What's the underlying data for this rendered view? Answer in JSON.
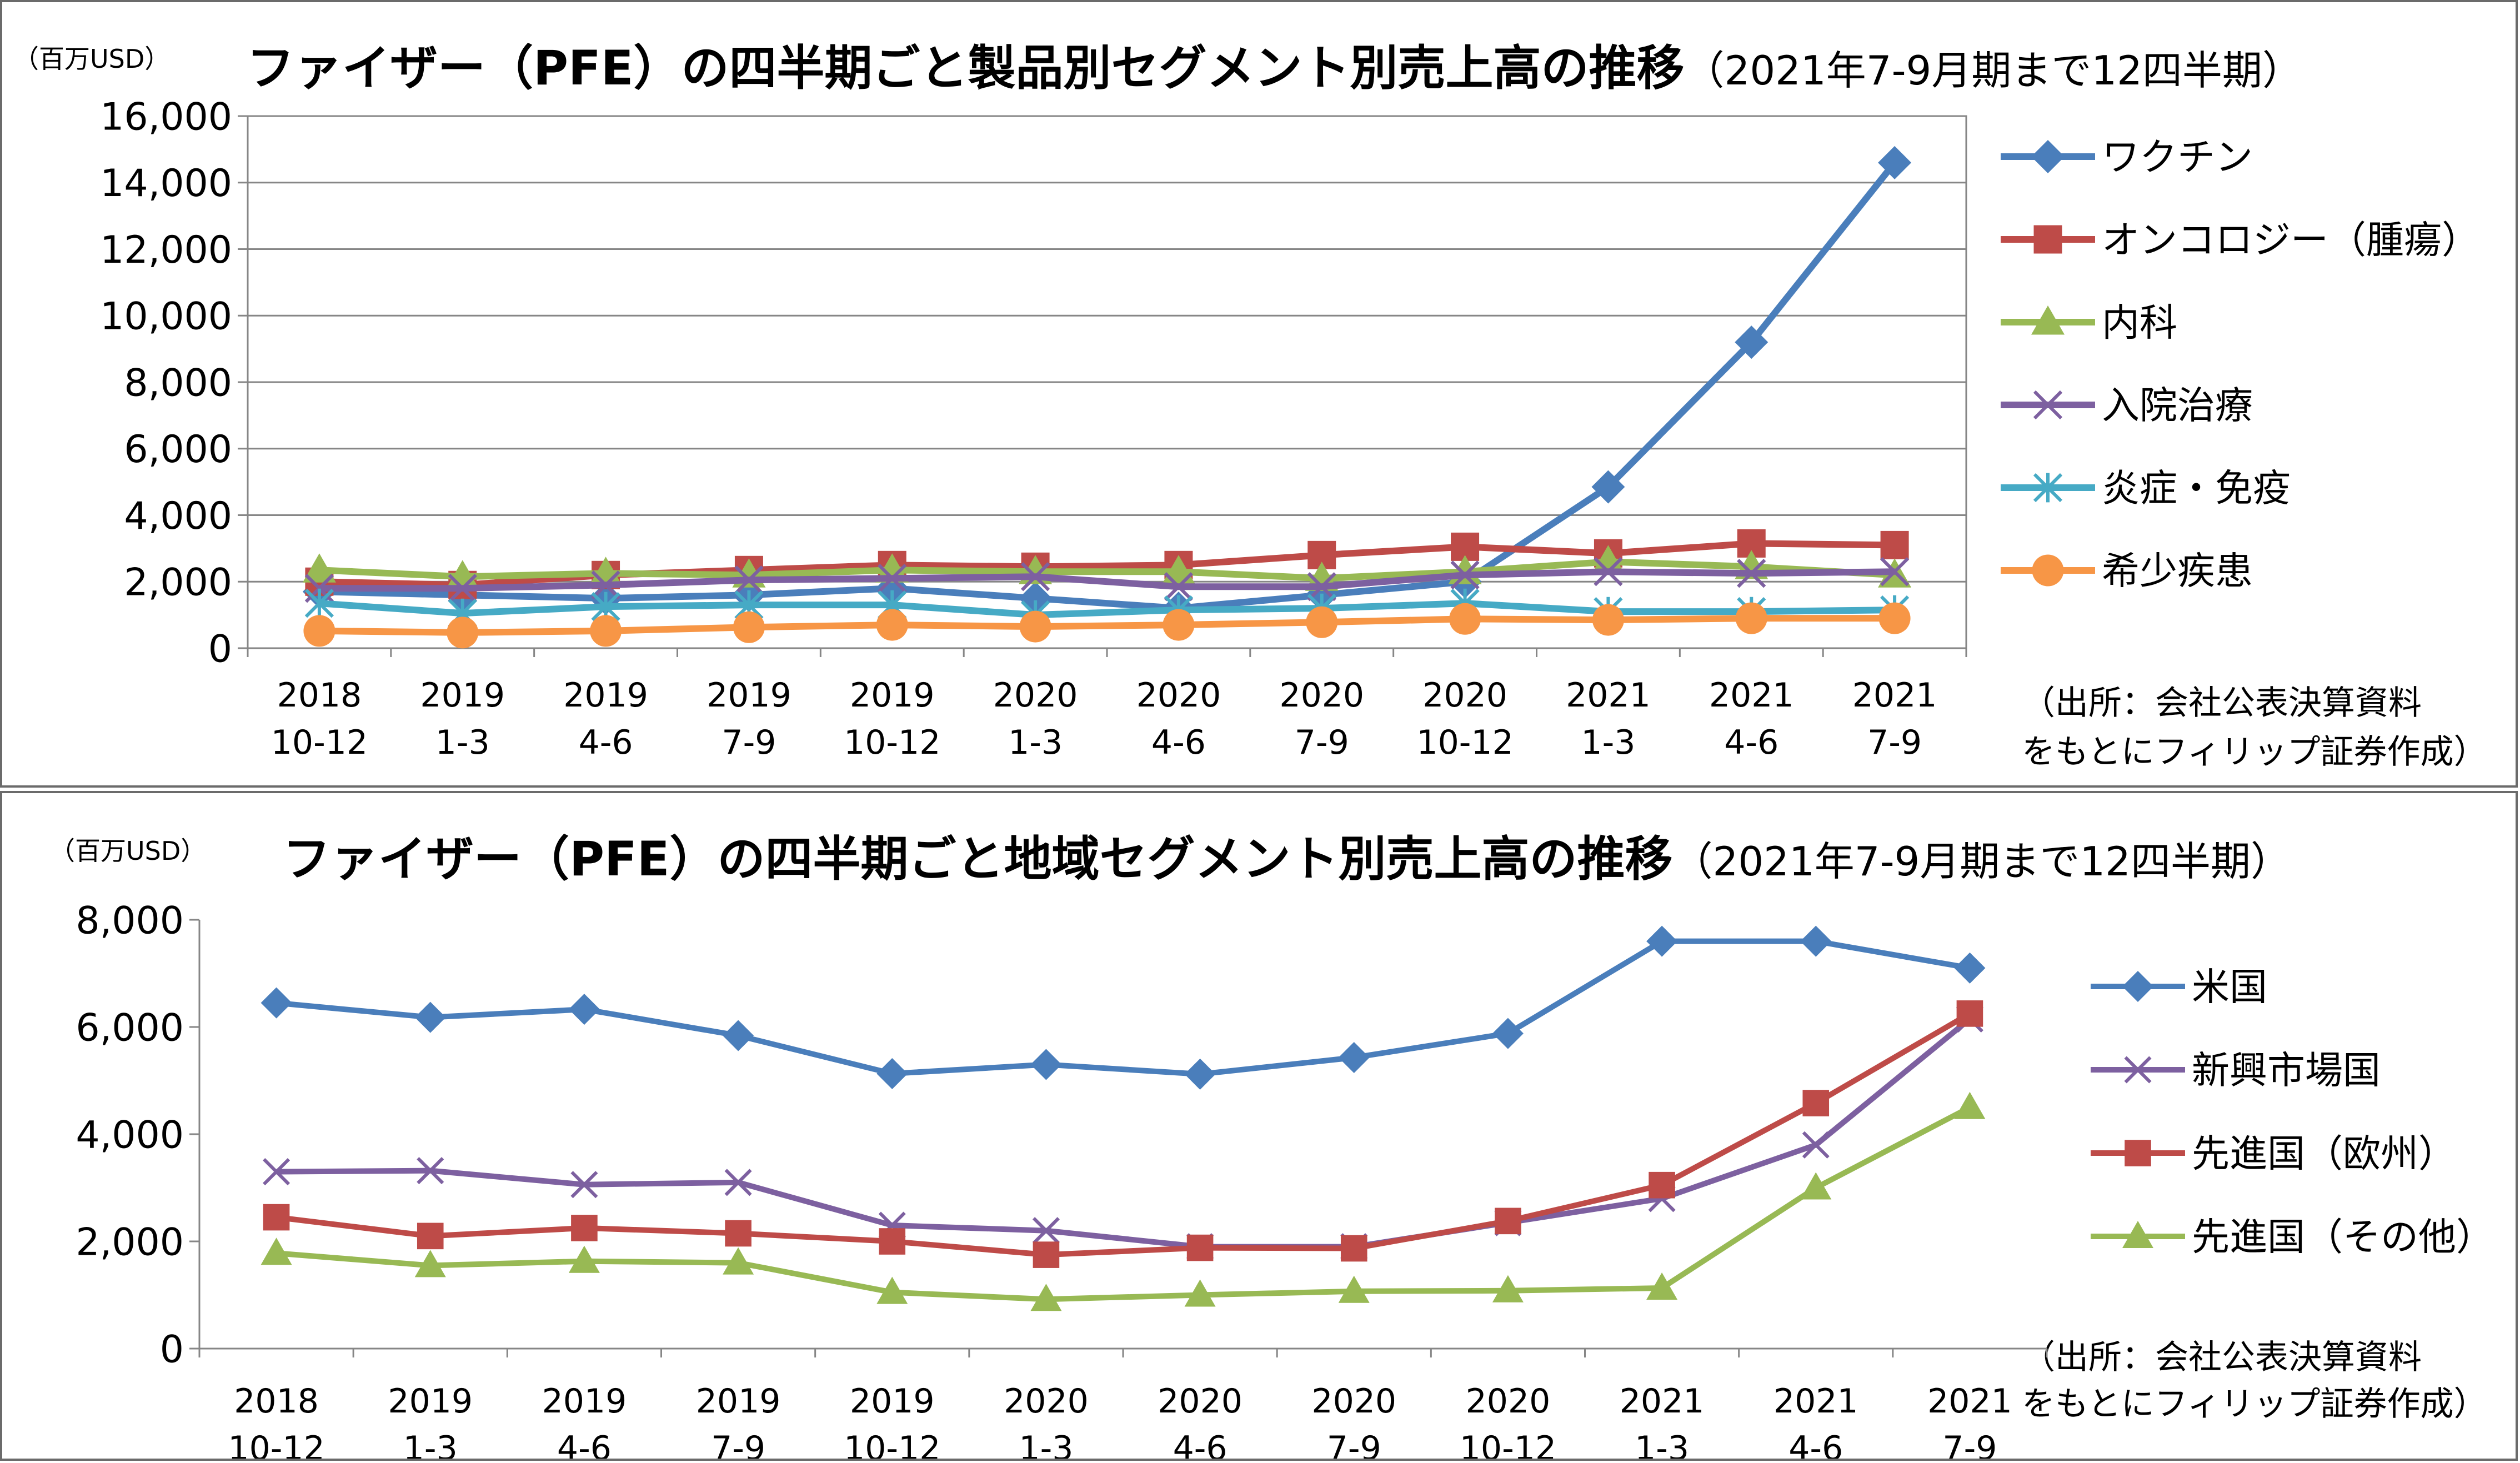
{
  "charts": [
    {
      "id": "top",
      "unit_label": "（百万USD）",
      "title": "ファイザー（PFE）の四半期ごと製品別セグメント別売上高の推移",
      "title_suffix": "（2021年7-9月期まで12四半期）",
      "source_line1": "（出所：会社公表決算資料",
      "source_line2": "をもとにフィリップ証券作成）"
    },
    {
      "id": "bottom",
      "unit_label": "（百万USD）",
      "title": "ファイザー（PFE）の四半期ごと地域セグメント別売上高の推移",
      "title_suffix": "（2021年7-9月期まで12四半期）",
      "source_line1": "（出所：会社公表決算資料",
      "source_line2": "をもとにフィリップ証券作成）"
    }
  ],
  "chart_data": [
    {
      "type": "line",
      "categories": [
        [
          "2018",
          "10-12"
        ],
        [
          "2019",
          "1-3"
        ],
        [
          "2019",
          "4-6"
        ],
        [
          "2019",
          "7-9"
        ],
        [
          "2019",
          "10-12"
        ],
        [
          "2020",
          "1-3"
        ],
        [
          "2020",
          "4-6"
        ],
        [
          "2020",
          "7-9"
        ],
        [
          "2020",
          "10-12"
        ],
        [
          "2021",
          "1-3"
        ],
        [
          "2021",
          "4-6"
        ],
        [
          "2021",
          "7-9"
        ]
      ],
      "ylim": [
        0,
        16000
      ],
      "yticks": [
        0,
        2000,
        4000,
        6000,
        8000,
        10000,
        12000,
        14000,
        16000
      ],
      "ytick_labels": [
        "0",
        "2,000",
        "4,000",
        "6,000",
        "8,000",
        "10,000",
        "12,000",
        "14,000",
        "16,000"
      ],
      "grid": true,
      "legend_position": "right",
      "series": [
        {
          "name": "ワクチン",
          "color": "#4a7ebb",
          "marker": "diamond",
          "values": [
            1700,
            1600,
            1500,
            1600,
            1800,
            1500,
            1200,
            1600,
            2000,
            4850,
            9200,
            14600
          ]
        },
        {
          "name": "オンコロジー（腫瘍）",
          "color": "#be4b48",
          "marker": "square",
          "values": [
            2000,
            1900,
            2200,
            2350,
            2500,
            2450,
            2500,
            2800,
            3050,
            2850,
            3150,
            3100
          ]
        },
        {
          "name": "内科",
          "color": "#98b954",
          "marker": "triangle",
          "values": [
            2350,
            2150,
            2250,
            2200,
            2350,
            2300,
            2300,
            2100,
            2300,
            2600,
            2450,
            2200
          ]
        },
        {
          "name": "入院治療",
          "color": "#7d60a0",
          "marker": "x",
          "values": [
            1800,
            1800,
            1900,
            2050,
            2100,
            2150,
            1850,
            1850,
            2200,
            2300,
            2250,
            2300
          ]
        },
        {
          "name": "炎症・免疫",
          "color": "#46aac5",
          "marker": "star",
          "values": [
            1350,
            1050,
            1250,
            1300,
            1300,
            1000,
            1150,
            1200,
            1350,
            1100,
            1100,
            1150
          ]
        },
        {
          "name": "希少疾患",
          "color": "#f79646",
          "marker": "circle",
          "values": [
            520,
            470,
            520,
            630,
            700,
            650,
            700,
            780,
            880,
            850,
            900,
            900
          ]
        }
      ]
    },
    {
      "type": "line",
      "categories": [
        [
          "2018",
          "10-12"
        ],
        [
          "2019",
          "1-3"
        ],
        [
          "2019",
          "4-6"
        ],
        [
          "2019",
          "7-9"
        ],
        [
          "2019",
          "10-12"
        ],
        [
          "2020",
          "1-3"
        ],
        [
          "2020",
          "4-6"
        ],
        [
          "2020",
          "7-9"
        ],
        [
          "2020",
          "10-12"
        ],
        [
          "2021",
          "1-3"
        ],
        [
          "2021",
          "4-6"
        ],
        [
          "2021",
          "7-9"
        ]
      ],
      "ylim": [
        0,
        8000
      ],
      "yticks": [
        0,
        2000,
        4000,
        6000,
        8000
      ],
      "ytick_labels": [
        "0",
        "2,000",
        "4,000",
        "6,000",
        "8,000"
      ],
      "grid": false,
      "legend_position": "right",
      "series": [
        {
          "name": "米国",
          "color": "#4a7ebb",
          "marker": "diamond",
          "values": [
            6450,
            6180,
            6330,
            5840,
            5130,
            5300,
            5120,
            5430,
            5880,
            7600,
            7600,
            7100
          ]
        },
        {
          "name": "新興市場国",
          "color": "#7d60a0",
          "marker": "x",
          "values": [
            3300,
            3320,
            3060,
            3100,
            2300,
            2200,
            1900,
            1900,
            2350,
            2800,
            3800,
            6150
          ]
        },
        {
          "name": "先進国（欧州）",
          "color": "#be4b48",
          "marker": "square",
          "values": [
            2450,
            2100,
            2250,
            2150,
            2000,
            1750,
            1880,
            1870,
            2380,
            3050,
            4580,
            6250
          ]
        },
        {
          "name": "先進国（その他）",
          "color": "#98b954",
          "marker": "triangle",
          "values": [
            1780,
            1550,
            1630,
            1600,
            1050,
            920,
            1000,
            1070,
            1080,
            1130,
            3000,
            4500
          ]
        }
      ]
    }
  ]
}
